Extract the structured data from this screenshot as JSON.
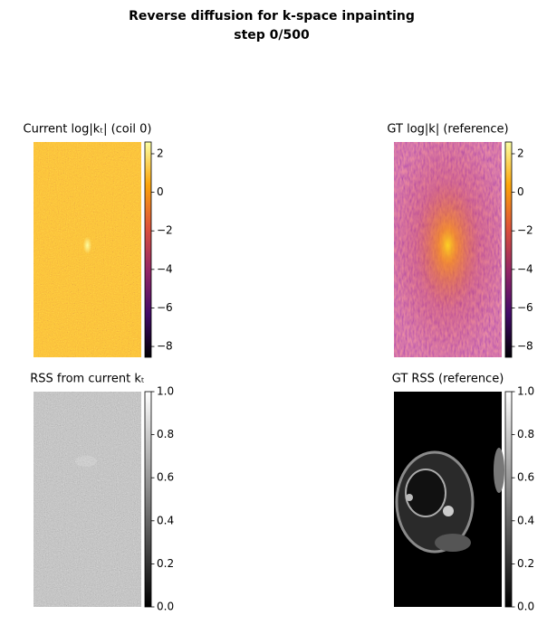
{
  "title": "Reverse diffusion for k-space inpainting",
  "subtitle": "step 0/500",
  "chart_data": [
    {
      "type": "image",
      "title": "Current log|kₜ|  (coil 0)",
      "colormap": "inferno",
      "clim": [
        -8.56,
        2.61
      ],
      "cticks": [
        {
          "value": -8,
          "label": "−8"
        },
        {
          "value": -6,
          "label": "−6"
        },
        {
          "value": -4,
          "label": "−4"
        },
        {
          "value": -2,
          "label": "−2"
        },
        0,
        2
      ]
    },
    {
      "type": "image",
      "title": "GT log|k|  (reference)",
      "colormap": "inferno",
      "clim": [
        -8.56,
        2.61
      ],
      "cticks": [
        {
          "value": -8,
          "label": "−8"
        },
        {
          "value": -6,
          "label": "−6"
        },
        {
          "value": -4,
          "label": "−4"
        },
        {
          "value": -2,
          "label": "−2"
        },
        0,
        2
      ]
    },
    {
      "type": "image",
      "title": "RSS from current kₜ",
      "colormap": "gray",
      "clim": [
        0,
        1
      ],
      "cticks": [
        {
          "value": 0,
          "label": "0.0"
        },
        0.2,
        0.4,
        0.6,
        0.8,
        {
          "value": 1,
          "label": "1.0"
        }
      ]
    },
    {
      "type": "image",
      "title": "GT RSS  (reference)",
      "colormap": "gray",
      "clim": [
        0,
        1
      ],
      "cticks": [
        {
          "value": 0,
          "label": "0.0"
        },
        0.2,
        0.4,
        0.6,
        0.8,
        {
          "value": 1,
          "label": "1.0"
        }
      ]
    }
  ]
}
